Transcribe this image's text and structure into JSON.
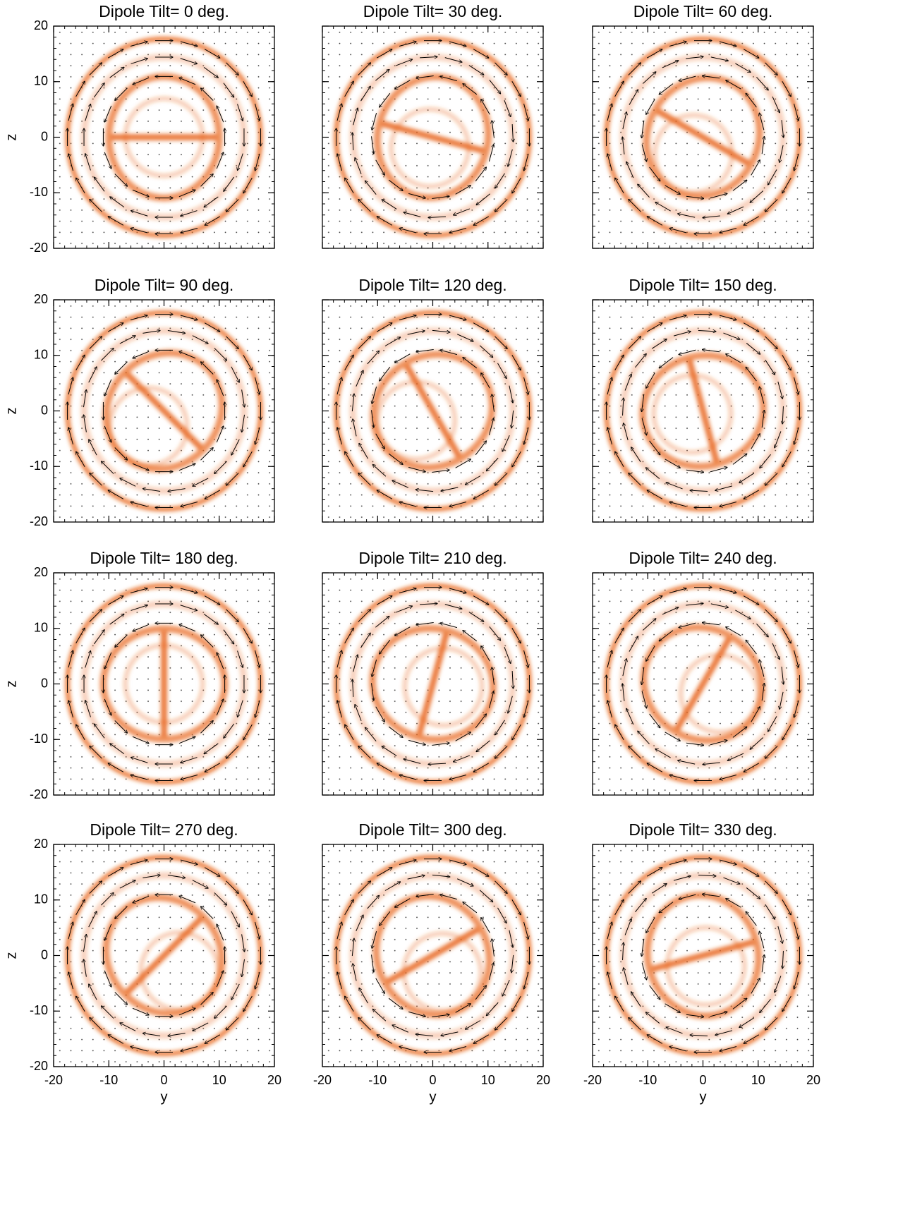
{
  "chart_data": [
    {
      "type": "quiver",
      "title": "Dipole Tilt= 0 deg.",
      "ylabel": "z",
      "xlim": [
        -20,
        20
      ],
      "ylim": [
        -20,
        20
      ],
      "xticks": [
        -20,
        -10,
        0,
        10,
        20
      ],
      "yticks": [
        -20,
        -10,
        0,
        10,
        20
      ],
      "color": "#e8661c"
    },
    {
      "type": "quiver",
      "title": "Dipole Tilt= 30 deg.",
      "xlim": [
        -20,
        20
      ],
      "ylim": [
        -20,
        20
      ],
      "xticks": [
        -20,
        -10,
        0,
        10,
        20
      ],
      "yticks": [
        -20,
        -10,
        0,
        10,
        20
      ],
      "color": "#e8661c"
    },
    {
      "type": "quiver",
      "title": "Dipole Tilt= 60 deg.",
      "xlim": [
        -20,
        20
      ],
      "ylim": [
        -20,
        20
      ],
      "xticks": [
        -20,
        -10,
        0,
        10,
        20
      ],
      "yticks": [
        -20,
        -10,
        0,
        10,
        20
      ],
      "color": "#e8661c"
    },
    {
      "type": "quiver",
      "title": "Dipole Tilt= 90 deg.",
      "ylabel": "z",
      "xlim": [
        -20,
        20
      ],
      "ylim": [
        -20,
        20
      ],
      "xticks": [
        -20,
        -10,
        0,
        10,
        20
      ],
      "yticks": [
        -20,
        -10,
        0,
        10,
        20
      ],
      "color": "#e8661c"
    },
    {
      "type": "quiver",
      "title": "Dipole Tilt= 120 deg.",
      "xlim": [
        -20,
        20
      ],
      "ylim": [
        -20,
        20
      ],
      "xticks": [
        -20,
        -10,
        0,
        10,
        20
      ],
      "yticks": [
        -20,
        -10,
        0,
        10,
        20
      ],
      "color": "#e8661c"
    },
    {
      "type": "quiver",
      "title": "Dipole Tilt= 150 deg.",
      "xlim": [
        -20,
        20
      ],
      "ylim": [
        -20,
        20
      ],
      "xticks": [
        -20,
        -10,
        0,
        10,
        20
      ],
      "yticks": [
        -20,
        -10,
        0,
        10,
        20
      ],
      "color": "#e8661c"
    },
    {
      "type": "quiver",
      "title": "Dipole Tilt= 180 deg.",
      "ylabel": "z",
      "xlim": [
        -20,
        20
      ],
      "ylim": [
        -20,
        20
      ],
      "xticks": [
        -20,
        -10,
        0,
        10,
        20
      ],
      "yticks": [
        -20,
        -10,
        0,
        10,
        20
      ],
      "color": "#e8661c"
    },
    {
      "type": "quiver",
      "title": "Dipole Tilt= 210 deg.",
      "xlim": [
        -20,
        20
      ],
      "ylim": [
        -20,
        20
      ],
      "xticks": [
        -20,
        -10,
        0,
        10,
        20
      ],
      "yticks": [
        -20,
        -10,
        0,
        10,
        20
      ],
      "color": "#e8661c"
    },
    {
      "type": "quiver",
      "title": "Dipole Tilt= 240 deg.",
      "xlim": [
        -20,
        20
      ],
      "ylim": [
        -20,
        20
      ],
      "xticks": [
        -20,
        -10,
        0,
        10,
        20
      ],
      "yticks": [
        -20,
        -10,
        0,
        10,
        20
      ],
      "color": "#e8661c"
    },
    {
      "type": "quiver",
      "title": "Dipole Tilt= 270 deg.",
      "ylabel": "z",
      "xlabel": "y",
      "xlim": [
        -20,
        20
      ],
      "ylim": [
        -20,
        20
      ],
      "xticks": [
        -20,
        -10,
        0,
        10,
        20
      ],
      "yticks": [
        -20,
        -10,
        0,
        10,
        20
      ],
      "color": "#e8661c"
    },
    {
      "type": "quiver",
      "title": "Dipole Tilt= 300 deg.",
      "xlabel": "y",
      "xlim": [
        -20,
        20
      ],
      "ylim": [
        -20,
        20
      ],
      "xticks": [
        -20,
        -10,
        0,
        10,
        20
      ],
      "yticks": [
        -20,
        -10,
        0,
        10,
        20
      ],
      "color": "#e8661c"
    },
    {
      "type": "quiver",
      "title": "Dipole Tilt= 330 deg.",
      "xlabel": "y",
      "xlim": [
        -20,
        20
      ],
      "ylim": [
        -20,
        20
      ],
      "xticks": [
        -20,
        -10,
        0,
        10,
        20
      ],
      "yticks": [
        -20,
        -10,
        0,
        10,
        20
      ],
      "color": "#e8661c"
    }
  ]
}
